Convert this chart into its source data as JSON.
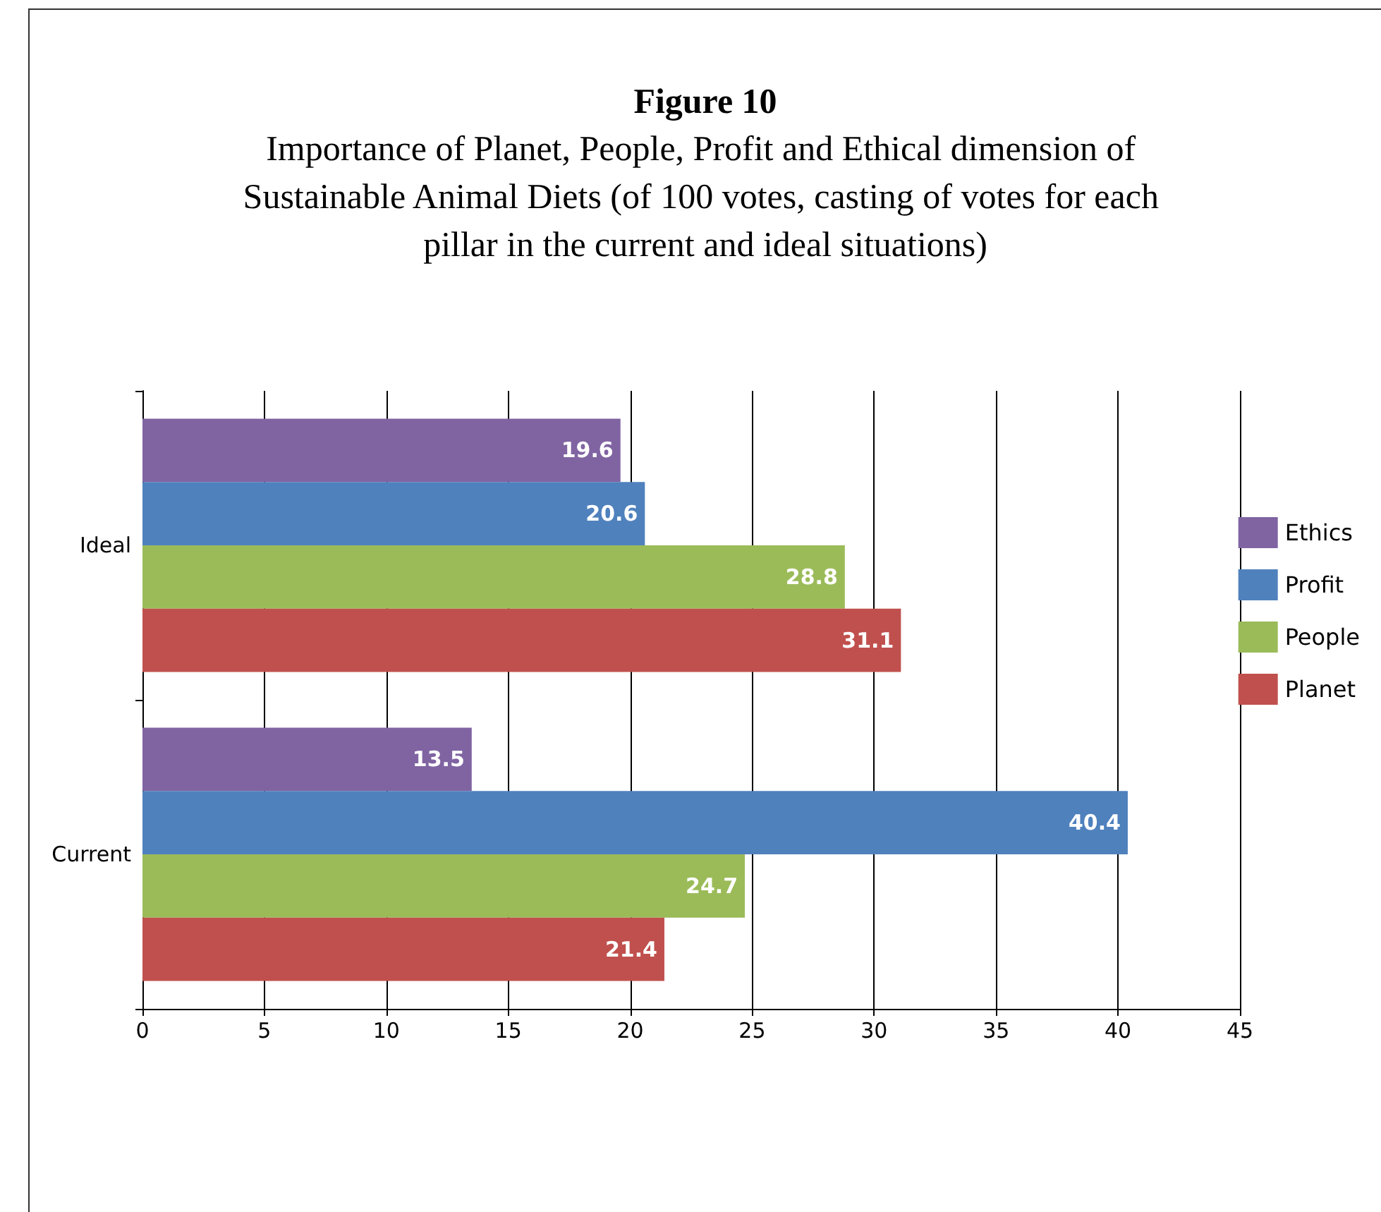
{
  "chart_data": {
    "type": "bar",
    "orientation": "horizontal",
    "title": "Figure 10",
    "subtitle": "Importance of Planet, People, Profit and Ethical dimension of Sustainable Animal Diets (of 100 votes, casting of votes for each pillar in the current and ideal situations)",
    "categories": [
      "Ideal",
      "Current"
    ],
    "series": [
      {
        "name": "Ethics",
        "color": "#8064a2",
        "values": [
          19.6,
          13.5
        ]
      },
      {
        "name": "Profit",
        "color": "#4f81bd",
        "values": [
          20.6,
          40.4
        ]
      },
      {
        "name": "People",
        "color": "#9bbb59",
        "values": [
          28.8,
          24.7
        ]
      },
      {
        "name": "Planet",
        "color": "#c0504d",
        "values": [
          31.1,
          21.4
        ]
      }
    ],
    "xlim": [
      0,
      45
    ],
    "xticks": [
      0,
      5,
      10,
      15,
      20,
      25,
      30,
      35,
      40,
      45
    ],
    "grid": "x",
    "legend": "right",
    "data_labels": true
  }
}
